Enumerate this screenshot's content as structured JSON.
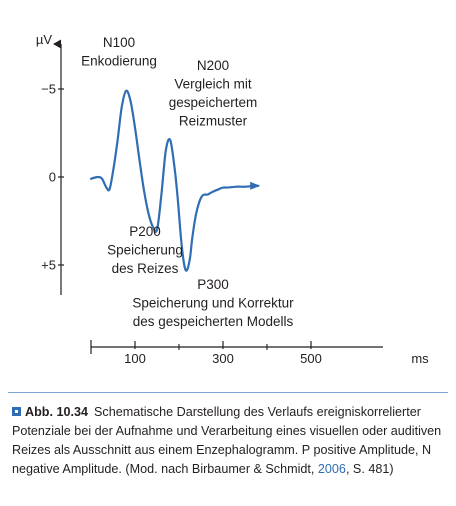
{
  "chart_data": {
    "type": "line",
    "ylabel": "µV",
    "xlabel": "ms",
    "y_reversed": true,
    "grid": false,
    "xlim": [
      -50,
      650
    ],
    "ylim": [
      -6.3,
      6.7
    ],
    "x_ticks": [
      {
        "value": 100,
        "label": "100"
      },
      {
        "value": 300,
        "label": "300"
      },
      {
        "value": 500,
        "label": "500"
      }
    ],
    "x_minor_ticks": [
      0,
      200,
      400
    ],
    "y_ticks": [
      {
        "value": -5,
        "label": "−5"
      },
      {
        "value": 0,
        "label": "0"
      },
      {
        "value": 5,
        "label": "+5"
      }
    ],
    "series": [
      {
        "color": "#2f6db5",
        "x": [
          0,
          15,
          25,
          35,
          42,
          50,
          60,
          70,
          80,
          90,
          100,
          110,
          120,
          130,
          140,
          150,
          160,
          170,
          180,
          190,
          197,
          205,
          212,
          218,
          225,
          230,
          238,
          245,
          252,
          258,
          265,
          272,
          280,
          290,
          300,
          310,
          330,
          350,
          370,
          380
        ],
        "y": [
          0.1,
          0.0,
          0.1,
          0.6,
          0.7,
          -0.3,
          -2.0,
          -4.0,
          -4.9,
          -4.3,
          -2.8,
          -1.0,
          0.7,
          2.0,
          2.8,
          3.0,
          1.0,
          -1.5,
          -2.1,
          -0.5,
          1.2,
          3.6,
          5.0,
          5.3,
          4.6,
          3.5,
          2.2,
          1.5,
          1.1,
          1.0,
          1.0,
          0.9,
          0.8,
          0.7,
          0.6,
          0.6,
          0.55,
          0.55,
          0.5,
          0.5
        ],
        "arrow": true
      }
    ],
    "annotations": [
      {
        "id": "n100",
        "lines": [
          "N100",
          "Enkodierung"
        ]
      },
      {
        "id": "n200",
        "lines": [
          "N200",
          "Vergleich mit",
          "gespeichertem",
          "Reizmuster"
        ]
      },
      {
        "id": "p200",
        "lines": [
          "P200",
          "Speicherung",
          "des Reizes"
        ]
      },
      {
        "id": "p300",
        "lines": [
          "P300",
          "Speicherung und Korrektur",
          "des gespeicherten Modells"
        ]
      }
    ]
  },
  "caption": {
    "number": "Abb. 10.34",
    "text": "Schematische Darstellung des Verlaufs ereigniskorrelierter Potenziale bei der Aufnahme und Verarbeitung eines visuellen oder auditiven Reizes als Ausschnitt aus einem Enzephalogramm. P positive Amplitude, N negative Amplitude. (Mod. nach Birbaumer & Schmidt, ",
    "citation_year": "2006",
    "text_end": ", S. 481)"
  }
}
